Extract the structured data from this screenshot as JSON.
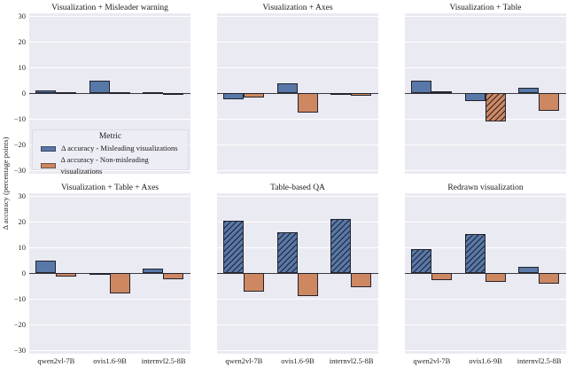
{
  "figure": {
    "ylabel": "Δ accuracy (percentage points)",
    "colors": {
      "misleading_blue": "#5878a8",
      "non_misleading_orange": "#cd8862",
      "bar_edge": "#23232e",
      "plot_background": "#eaeaf2",
      "gridline": "#ffffff"
    }
  },
  "axes": {
    "categories": [
      "qwen2vl-7B",
      "ovis1.6-9B",
      "internvl2.5-8B"
    ],
    "ytick_values": [
      30,
      20,
      10,
      0,
      -10,
      -20,
      -30
    ],
    "ytick_labels": [
      "30",
      "20",
      "10",
      "0",
      "−10",
      "−20",
      "−30"
    ]
  },
  "legend": {
    "title": "Metric",
    "entries": [
      {
        "label": "Δ accuracy - Misleading visualizations",
        "color": "#5878a8"
      },
      {
        "label": "Δ accuracy - Non-misleading visualizations",
        "color": "#cd8862"
      }
    ]
  },
  "chart_data": [
    {
      "type": "bar",
      "title": "Visualization + Misleader warning",
      "categories": [
        "qwen2vl-7B",
        "ovis1.6-9B",
        "internvl2.5-8B"
      ],
      "ylim": [
        -30,
        30
      ],
      "ylabel": "Δ accuracy (percentage points)",
      "series": [
        {
          "name": "Δ accuracy - Misleading visualizations",
          "values": [
            0.9,
            5.0,
            0.2
          ],
          "hatched": [
            false,
            false,
            false
          ]
        },
        {
          "name": "Δ accuracy - Non-misleading visualizations",
          "values": [
            0.2,
            0.2,
            -0.2
          ],
          "hatched": [
            false,
            false,
            false
          ]
        }
      ]
    },
    {
      "type": "bar",
      "title": "Visualization + Axes",
      "categories": [
        "qwen2vl-7B",
        "ovis1.6-9B",
        "internvl2.5-8B"
      ],
      "ylim": [
        -30,
        30
      ],
      "ylabel": "Δ accuracy (percentage points)",
      "series": [
        {
          "name": "Δ accuracy - Misleading visualizations",
          "values": [
            -2.4,
            3.7,
            -0.8
          ],
          "hatched": [
            false,
            false,
            false
          ]
        },
        {
          "name": "Δ accuracy - Non-misleading visualizations",
          "values": [
            -1.8,
            -7.6,
            -1.0
          ],
          "hatched": [
            false,
            false,
            false
          ]
        }
      ]
    },
    {
      "type": "bar",
      "title": "Visualization + Table",
      "categories": [
        "qwen2vl-7B",
        "ovis1.6-9B",
        "internvl2.5-8B"
      ],
      "ylim": [
        -30,
        30
      ],
      "ylabel": "Δ accuracy (percentage points)",
      "series": [
        {
          "name": "Δ accuracy - Misleading visualizations",
          "values": [
            5.0,
            -3.2,
            2.0
          ],
          "hatched": [
            false,
            false,
            false
          ]
        },
        {
          "name": "Δ accuracy - Non-misleading visualizations",
          "values": [
            0.8,
            -11.0,
            -6.8
          ],
          "hatched": [
            false,
            true,
            false
          ]
        }
      ]
    },
    {
      "type": "bar",
      "title": "Visualization + Table + Axes",
      "categories": [
        "qwen2vl-7B",
        "ovis1.6-9B",
        "internvl2.5-8B"
      ],
      "ylim": [
        -30,
        30
      ],
      "ylabel": "Δ accuracy (percentage points)",
      "series": [
        {
          "name": "Δ accuracy - Misleading visualizations",
          "values": [
            5.0,
            -0.8,
            1.7
          ],
          "hatched": [
            false,
            false,
            false
          ]
        },
        {
          "name": "Δ accuracy - Non-misleading visualizations",
          "values": [
            -1.4,
            -8.0,
            -2.3
          ],
          "hatched": [
            false,
            false,
            false
          ]
        }
      ]
    },
    {
      "type": "bar",
      "title": "Table-based QA",
      "categories": [
        "qwen2vl-7B",
        "ovis1.6-9B",
        "internvl2.5-8B"
      ],
      "ylim": [
        -30,
        30
      ],
      "ylabel": "Δ accuracy (percentage points)",
      "series": [
        {
          "name": "Δ accuracy - Misleading visualizations",
          "values": [
            20.3,
            16.0,
            21.2
          ],
          "hatched": [
            true,
            true,
            true
          ]
        },
        {
          "name": "Δ accuracy - Non-misleading visualizations",
          "values": [
            -7.2,
            -8.9,
            -5.5
          ],
          "hatched": [
            false,
            false,
            false
          ]
        }
      ]
    },
    {
      "type": "bar",
      "title": "Redrawn visualization",
      "categories": [
        "qwen2vl-7B",
        "ovis1.6-9B",
        "internvl2.5-8B"
      ],
      "ylim": [
        -30,
        30
      ],
      "ylabel": "Δ accuracy (percentage points)",
      "series": [
        {
          "name": "Δ accuracy - Misleading visualizations",
          "values": [
            9.3,
            15.1,
            2.3
          ],
          "hatched": [
            true,
            true,
            false
          ]
        },
        {
          "name": "Δ accuracy - Non-misleading visualizations",
          "values": [
            -2.6,
            -3.4,
            -4.2
          ],
          "hatched": [
            false,
            false,
            false
          ]
        }
      ]
    }
  ]
}
